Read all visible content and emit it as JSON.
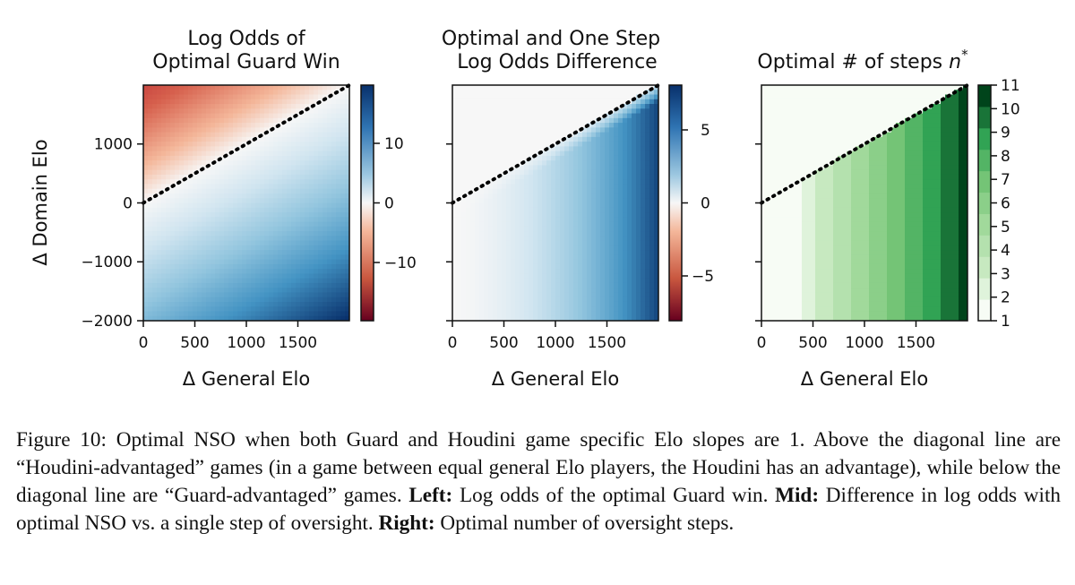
{
  "figure": {
    "panels": [
      {
        "id": "left",
        "title_lines": [
          "Log Odds of",
          "Optimal Guard Win"
        ],
        "xlabel": "Δ General Elo",
        "ylabel": "Δ Domain Elo",
        "x_ticks": [
          "0",
          "500",
          "1000",
          "1500"
        ],
        "y_ticks": [
          "1000",
          "0",
          "−1000",
          "−2000"
        ],
        "colorbar_ticks": [
          "10",
          "0",
          "−10"
        ],
        "colormap": "RdBu"
      },
      {
        "id": "mid",
        "title_lines": [
          "Optimal and One Step",
          "Log Odds Difference"
        ],
        "xlabel": "Δ General Elo",
        "x_ticks": [
          "0",
          "500",
          "1000",
          "1500"
        ],
        "colorbar_ticks": [
          "5",
          "0",
          "−5"
        ],
        "colormap": "RdBu"
      },
      {
        "id": "right",
        "title_text": "Optimal # of steps ",
        "title_symbol": "n",
        "title_sup": "*",
        "xlabel": "Δ General Elo",
        "x_ticks": [
          "0",
          "500",
          "1000",
          "1500"
        ],
        "colorbar_ticks": [
          "11",
          "10",
          "9",
          "8",
          "7",
          "6",
          "5",
          "4",
          "3",
          "2",
          "1"
        ],
        "colormap": "Greens"
      }
    ],
    "colors": {
      "red_dark": "#67001f",
      "red": "#c9573f",
      "white": "#f7f7f7",
      "blue": "#2f74b3",
      "blue_dark": "#08306b",
      "green_light": "#f4fbf1",
      "green_dark": "#00441b",
      "dotted_line": "#000000"
    }
  },
  "chart_data": [
    {
      "type": "heatmap",
      "title": "Log Odds of Optimal Guard Win",
      "xlabel": "Δ General Elo",
      "ylabel": "Δ Domain Elo",
      "xlim": [
        0,
        2000
      ],
      "ylim": [
        -2000,
        2000
      ],
      "colorbar_range": [
        -18,
        18
      ],
      "colorbar_ticks": [
        10,
        0,
        -10
      ],
      "diagonal_line": {
        "x": [
          0,
          2000
        ],
        "y": [
          0,
          2000
        ],
        "style": "dotted"
      }
    },
    {
      "type": "heatmap",
      "title": "Optimal and One Step Log Odds Difference",
      "xlabel": "Δ General Elo",
      "xlim": [
        0,
        2000
      ],
      "ylim": [
        -2000,
        2000
      ],
      "colorbar_range": [
        -8,
        8
      ],
      "colorbar_ticks": [
        5,
        0,
        -5
      ],
      "diagonal_line": {
        "x": [
          0,
          2000
        ],
        "y": [
          0,
          2000
        ],
        "style": "dotted"
      }
    },
    {
      "type": "heatmap",
      "title": "Optimal # of steps n*",
      "xlabel": "Δ General Elo",
      "xlim": [
        0,
        2000
      ],
      "ylim": [
        -2000,
        2000
      ],
      "colorbar_range": [
        1,
        11
      ],
      "colorbar_ticks": [
        1,
        2,
        3,
        4,
        5,
        6,
        7,
        8,
        9,
        10,
        11
      ],
      "diagonal_line": {
        "x": [
          0,
          2000
        ],
        "y": [
          0,
          2000
        ],
        "style": "dotted"
      }
    }
  ],
  "caption": {
    "lead": "Figure 10: Optimal NSO when both Guard and Houdini game specific Elo slopes are 1. Above the diagonal line are “Houdini-advantaged” games (in a game between equal general Elo players, the Houdini has an advantage), while below the diagonal line are “Guard-advantaged” games. ",
    "left_label": "Left:",
    "left_text": " Log odds of the optimal Guard win. ",
    "mid_label": "Mid:",
    "mid_text": " Difference in log odds with optimal NSO vs. a single step of oversight. ",
    "right_label": "Right:",
    "right_text": " Optimal number of oversight steps."
  }
}
